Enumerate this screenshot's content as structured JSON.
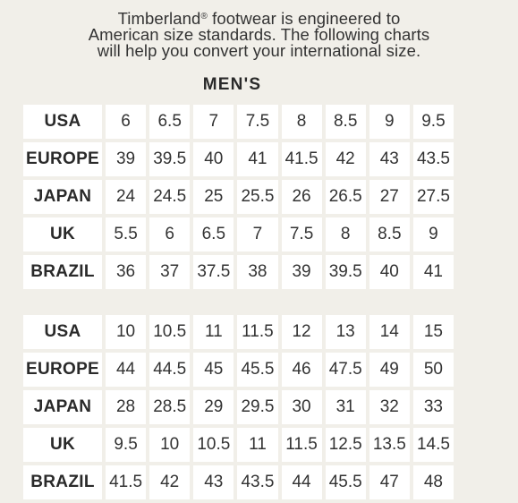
{
  "intro": {
    "line1_prefix": "Timberland",
    "line1_mark": "®",
    "line1_suffix": " footwear is engineered to",
    "line2": "American size standards. The following charts",
    "line3": "will help you convert your international size."
  },
  "section_heading": "MEN'S",
  "tables": [
    {
      "rows": [
        {
          "label": "USA",
          "values": [
            "6",
            "6.5",
            "7",
            "7.5",
            "8",
            "8.5",
            "9",
            "9.5"
          ]
        },
        {
          "label": "EUROPE",
          "values": [
            "39",
            "39.5",
            "40",
            "41",
            "41.5",
            "42",
            "43",
            "43.5"
          ]
        },
        {
          "label": "JAPAN",
          "values": [
            "24",
            "24.5",
            "25",
            "25.5",
            "26",
            "26.5",
            "27",
            "27.5"
          ]
        },
        {
          "label": "UK",
          "values": [
            "5.5",
            "6",
            "6.5",
            "7",
            "7.5",
            "8",
            "8.5",
            "9"
          ]
        },
        {
          "label": "BRAZIL",
          "values": [
            "36",
            "37",
            "37.5",
            "38",
            "39",
            "39.5",
            "40",
            "41"
          ]
        }
      ]
    },
    {
      "rows": [
        {
          "label": "USA",
          "values": [
            "10",
            "10.5",
            "11",
            "11.5",
            "12",
            "13",
            "14",
            "15"
          ]
        },
        {
          "label": "EUROPE",
          "values": [
            "44",
            "44.5",
            "45",
            "45.5",
            "46",
            "47.5",
            "49",
            "50"
          ]
        },
        {
          "label": "JAPAN",
          "values": [
            "28",
            "28.5",
            "29",
            "29.5",
            "30",
            "31",
            "32",
            "33"
          ]
        },
        {
          "label": "UK",
          "values": [
            "9.5",
            "10",
            "10.5",
            "11",
            "11.5",
            "12.5",
            "13.5",
            "14.5"
          ]
        },
        {
          "label": "BRAZIL",
          "values": [
            "41.5",
            "42",
            "43",
            "43.5",
            "44",
            "45.5",
            "47",
            "48"
          ]
        }
      ]
    }
  ]
}
